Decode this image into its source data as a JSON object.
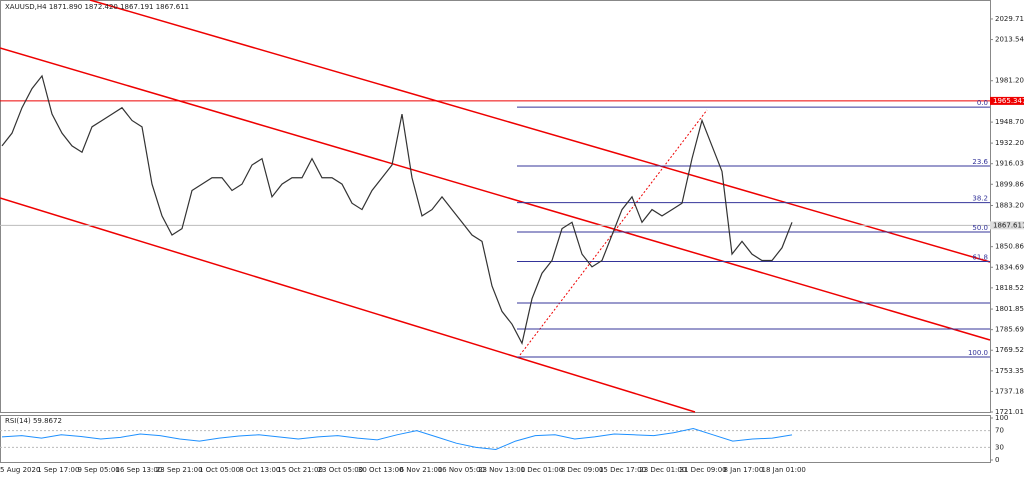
{
  "chart_data": {
    "type": "line",
    "title": "XAUUSD,H4  1871.890 1872.420 1867.191 1867.611",
    "color": "#333333",
    "values": [
      1930,
      1940,
      1960,
      1975,
      1985,
      1955,
      1940,
      1930,
      1925,
      1945,
      1950,
      1955,
      1960,
      1950,
      1945,
      1900,
      1875,
      1860,
      1865,
      1895,
      1900,
      1905,
      1905,
      1895,
      1900,
      1915,
      1920,
      1890,
      1900,
      1905,
      1905,
      1920,
      1905,
      1905,
      1900,
      1885,
      1880,
      1895,
      1905,
      1915,
      1955,
      1905,
      1875,
      1880,
      1890,
      1880,
      1870,
      1860,
      1855,
      1820,
      1800,
      1790,
      1775,
      1810,
      1830,
      1840,
      1865,
      1870,
      1845,
      1835,
      1840,
      1860,
      1880,
      1890,
      1870,
      1880,
      1875,
      1880,
      1885,
      1920,
      1950,
      1930,
      1910,
      1845,
      1855,
      1845,
      1840,
      1840,
      1850,
      1870
    ],
    "xlabels": [
      "25 Aug 2020",
      "1 Sep 17:00",
      "9 Sep 05:00",
      "16 Sep 13:00",
      "23 Sep 21:00",
      "1 Oct 05:00",
      "8 Oct 13:00",
      "15 Oct 21:00",
      "23 Oct 05:00",
      "30 Oct 13:00",
      "6 Nov 21:00",
      "16 Nov 05:00",
      "23 Nov 13:00",
      "1 Dec 01:00",
      "8 Dec 09:00",
      "15 Dec 17:00",
      "23 Dec 01:00",
      "31 Dec 09:00",
      "8 Jan 17:00",
      "18 Jan 01:00"
    ],
    "ylim": [
      1721.01,
      2044.6
    ],
    "yticks": [
      {
        "value": 2029.71,
        "label": "2029.710"
      },
      {
        "value": 2013.54,
        "label": "2013.540"
      },
      {
        "value": 1981.2,
        "label": "1981.200"
      },
      {
        "value": 1948.7,
        "label": "1948.700"
      },
      {
        "value": 1932.2,
        "label": "1932.200"
      },
      {
        "value": 1916.03,
        "label": "1916.030"
      },
      {
        "value": 1899.86,
        "label": "1899.860"
      },
      {
        "value": 1883.2,
        "label": "1883.200"
      },
      {
        "value": 1850.86,
        "label": "1850.860"
      },
      {
        "value": 1834.69,
        "label": "1834.690"
      },
      {
        "value": 1818.52,
        "label": "1818.520"
      },
      {
        "value": 1801.85,
        "label": "1801.850"
      },
      {
        "value": 1785.69,
        "label": "1785.690"
      },
      {
        "value": 1769.52,
        "label": "1769.520"
      },
      {
        "value": 1753.35,
        "label": "1753.350"
      },
      {
        "value": 1737.18,
        "label": "1737.180"
      },
      {
        "value": 1721.01,
        "label": "1721.010"
      }
    ],
    "resistance": 1965.347,
    "current_price": 1867.611,
    "fib": [
      {
        "label": "0.0",
        "price": 1960.5
      },
      {
        "label": "23.6",
        "price": 1914.2
      },
      {
        "label": "38.2",
        "price": 1885.5
      },
      {
        "label": "50.0",
        "price": 1862.4
      },
      {
        "label": "61.8",
        "price": 1839.2
      },
      {
        "label": null,
        "price": 1806.6
      },
      {
        "label": null,
        "price": 1786.2
      },
      {
        "label": "100.0",
        "price": 1764.2
      }
    ],
    "rsi": {
      "title": "RSI(14) 59.8672",
      "color": "#1e90ff",
      "ylim": [
        0,
        100
      ],
      "yticks": [
        100,
        70,
        30,
        0
      ],
      "values": [
        55,
        58,
        52,
        60,
        56,
        50,
        54,
        62,
        58,
        50,
        45,
        52,
        57,
        60,
        55,
        50,
        55,
        58,
        52,
        48,
        60,
        70,
        55,
        40,
        30,
        25,
        45,
        58,
        60,
        50,
        55,
        62,
        60,
        58,
        65,
        75,
        60,
        45,
        50,
        52,
        59.8672
      ]
    }
  }
}
